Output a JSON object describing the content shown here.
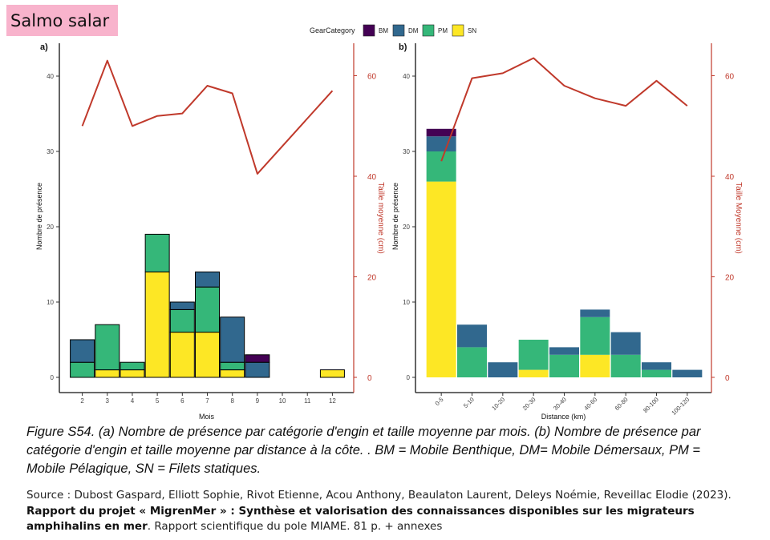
{
  "species_label": "Salmo salar",
  "legend": {
    "title": "GearCategory",
    "items": [
      {
        "key": "BM",
        "color": "#440154"
      },
      {
        "key": "DM",
        "color": "#31688e"
      },
      {
        "key": "PM",
        "color": "#35b779"
      },
      {
        "key": "SN",
        "color": "#fde725"
      }
    ]
  },
  "line_color": "#c0392b",
  "caption": "Figure S54. (a) Nombre de présence par catégorie d'engin et taille moyenne par mois. (b) Nombre de présence par catégorie d'engin et taille moyenne par distance à la côte. . BM = Mobile Benthique, DM= Mobile Démersaux, PM = Mobile Pélagique, SN = Filets statiques.",
  "source": {
    "prefix": "Source : ",
    "authors": "Dubost Gaspard, Elliott Sophie, Rivot Etienne, Acou Anthony, Beaulaton Laurent, Deleys Noémie, Reveillac Elodie (2023). ",
    "title_bold": "Rapport du projet « MigrenMer » : Synthèse et valorisation des connaissances disponibles sur les migrateurs amphihalins en mer",
    "suffix": ". Rapport scientifique du pole MIAME. 81 p. + annexes"
  },
  "chart_data": [
    {
      "panel": "a)",
      "type": "bar",
      "stacked": true,
      "xlabel": "Mois",
      "ylabel": "Nombre de présence",
      "y2label": "Taille moyenne (cm)",
      "categories": [
        "2",
        "3",
        "4",
        "5",
        "6",
        "7",
        "8",
        "9",
        "10",
        "11",
        "12"
      ],
      "ylim": [
        0,
        46
      ],
      "yticks": [
        0,
        10,
        20,
        30,
        40
      ],
      "y2lim": [
        0,
        66
      ],
      "y2ticks": [
        0,
        20,
        40,
        60
      ],
      "series": [
        {
          "name": "SN",
          "values": [
            0,
            1,
            1,
            14,
            6,
            6,
            1,
            0,
            0,
            0,
            1
          ]
        },
        {
          "name": "PM",
          "values": [
            2,
            6,
            1,
            5,
            3,
            6,
            1,
            0,
            0,
            0,
            0
          ]
        },
        {
          "name": "DM",
          "values": [
            3,
            0,
            0,
            0,
            1,
            2,
            6,
            2,
            0,
            0,
            0
          ]
        },
        {
          "name": "BM",
          "values": [
            0,
            0,
            0,
            0,
            0,
            0,
            0,
            1,
            0,
            0,
            0
          ]
        }
      ],
      "line": {
        "name": "Taille moyenne",
        "categories": [
          "2",
          "3",
          "4",
          "5",
          "6",
          "7",
          "8",
          "9",
          "12"
        ],
        "values": [
          50,
          63,
          50,
          52,
          52.5,
          58,
          56.5,
          40.5,
          57
        ]
      }
    },
    {
      "panel": "b)",
      "type": "bar",
      "stacked": true,
      "xlabel": "Distance (km)",
      "ylabel": "Nombre de présence",
      "y2label": "Taille Moyenne (cm)",
      "categories": [
        "0-5",
        "5-10",
        "10-20",
        "20-30",
        "30-40",
        "40-60",
        "60-80",
        "80-100",
        "100-120"
      ],
      "ylim": [
        0,
        46
      ],
      "yticks": [
        0,
        10,
        20,
        30,
        40
      ],
      "y2lim": [
        0,
        66
      ],
      "y2ticks": [
        0,
        20,
        40,
        60
      ],
      "series": [
        {
          "name": "SN",
          "values": [
            26,
            0,
            0,
            1,
            0,
            3,
            0,
            0,
            0
          ]
        },
        {
          "name": "PM",
          "values": [
            4,
            4,
            0,
            4,
            3,
            5,
            3,
            1,
            0
          ]
        },
        {
          "name": "DM",
          "values": [
            2,
            3,
            2,
            0,
            1,
            1,
            3,
            1,
            1
          ]
        },
        {
          "name": "BM",
          "values": [
            1,
            0,
            0,
            0,
            0,
            0,
            0,
            0,
            0
          ]
        }
      ],
      "line": {
        "name": "Taille Moyenne",
        "categories": [
          "0-5",
          "5-10",
          "10-20",
          "20-30",
          "30-40",
          "40-60",
          "60-80",
          "80-100",
          "100-120"
        ],
        "values": [
          43,
          59.5,
          60.5,
          63.5,
          58,
          55.5,
          54,
          59,
          54
        ]
      }
    }
  ]
}
